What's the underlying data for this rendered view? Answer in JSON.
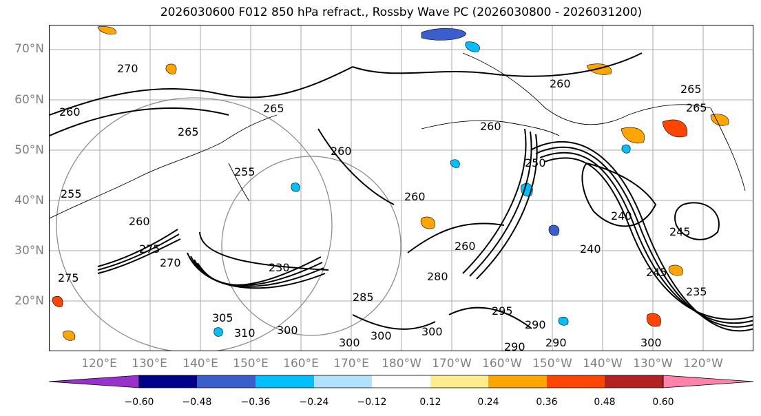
{
  "title": "2026030600 F012 850 hPa refract., Rossby Wave PC (2026030800 - 2026031200)",
  "lat_labels": [
    "70°N",
    "60°N",
    "50°N",
    "40°N",
    "30°N",
    "20°N"
  ],
  "lon_labels": [
    "120°E",
    "130°E",
    "140°E",
    "150°E",
    "160°E",
    "170°E",
    "180°W",
    "170°W",
    "160°W",
    "150°W",
    "140°W",
    "130°W",
    "120°W"
  ],
  "contour_labels": [
    "270",
    "260",
    "265",
    "265",
    "265",
    "260",
    "260",
    "260",
    "260",
    "265",
    "255",
    "250",
    "260",
    "245",
    "240",
    "260",
    "270",
    "275",
    "280",
    "285",
    "290",
    "295",
    "300",
    "305",
    "310",
    "300",
    "300",
    "290",
    "290",
    "300",
    "300",
    "235",
    "230",
    "240",
    "245",
    "275",
    "255"
  ],
  "colorbar": {
    "ticks": [
      "−0.60",
      "−0.48",
      "−0.36",
      "−0.24",
      "−0.12",
      "0.12",
      "0.24",
      "0.36",
      "0.48",
      "0.60"
    ],
    "colors": [
      "#9932cc",
      "#00008b",
      "#3a5fcd",
      "#00bfff",
      "#b0e2ff",
      "#ffffff",
      "#ffec8b",
      "#ffa500",
      "#ff4500",
      "#b22222",
      "#ff82ab"
    ]
  },
  "fill_colors": {
    "neg_light": "#b0e2ff",
    "neg_mid": "#00bfff",
    "neg_dark": "#3a5fcd",
    "pos_light": "#ffec8b",
    "pos_mid": "#ffa500",
    "pos_dark": "#ff4500"
  }
}
